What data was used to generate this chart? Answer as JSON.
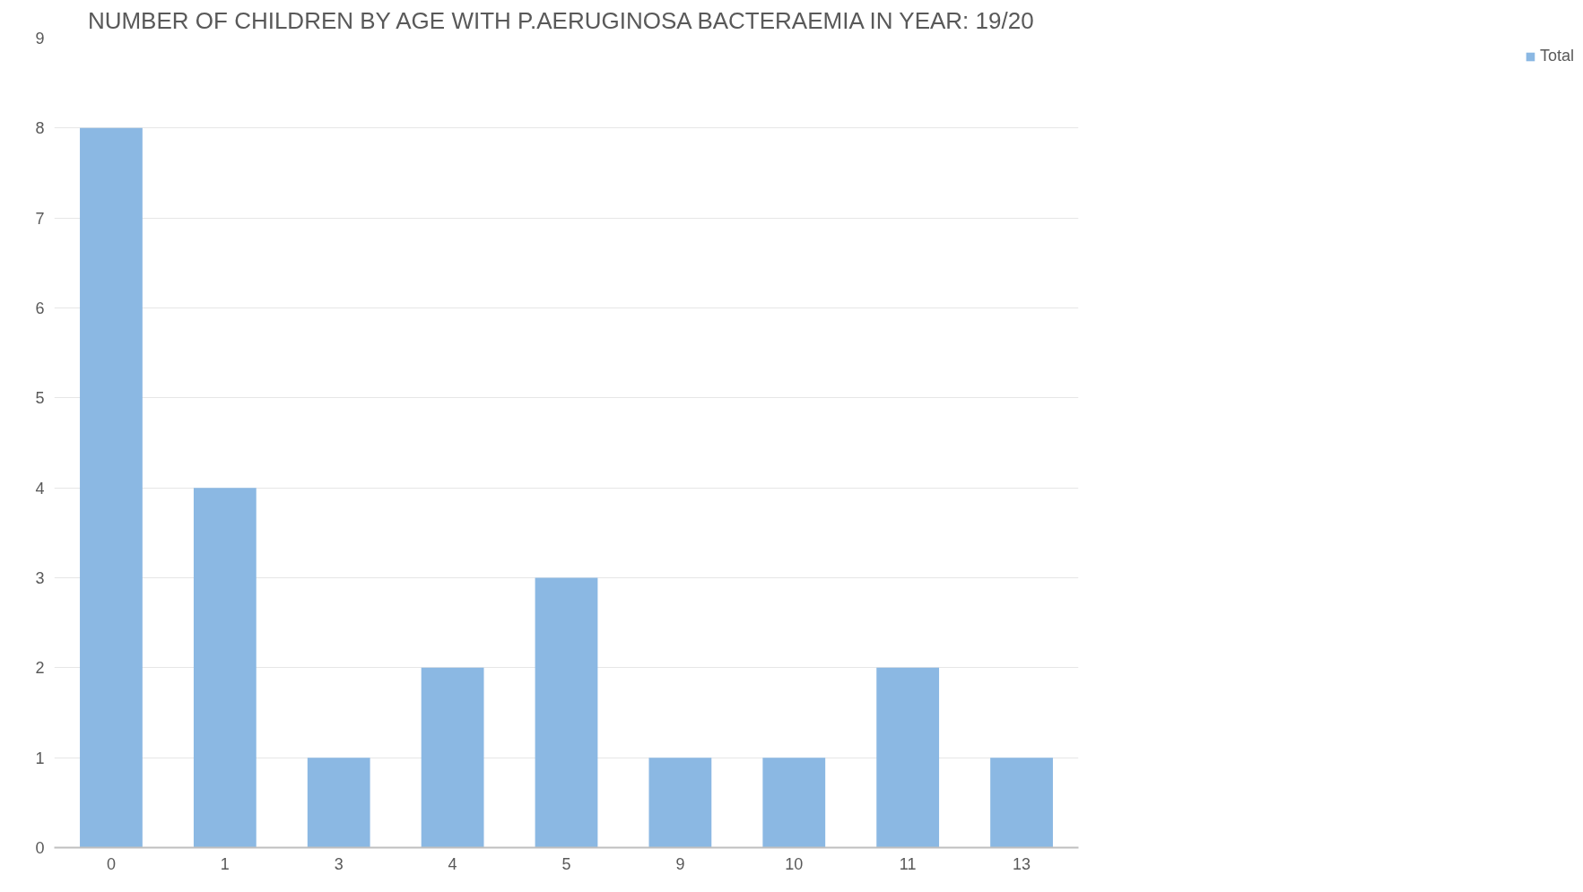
{
  "chart_data": {
    "type": "bar",
    "title": "NUMBER OF CHILDREN BY AGE WITH P.AERUGINOSA  BACTERAEMIA IN YEAR: 19/20",
    "categories": [
      "0",
      "1",
      "3",
      "4",
      "5",
      "9",
      "10",
      "11",
      "13"
    ],
    "series": [
      {
        "name": "Total",
        "color": "#8bb8e3",
        "values": [
          8,
          4,
          1,
          2,
          3,
          1,
          1,
          2,
          1
        ]
      }
    ],
    "ylim": [
      0,
      9
    ],
    "yticks": [
      0,
      1,
      2,
      3,
      4,
      5,
      6,
      7,
      8,
      9
    ],
    "grid": "y",
    "legend": "right"
  }
}
